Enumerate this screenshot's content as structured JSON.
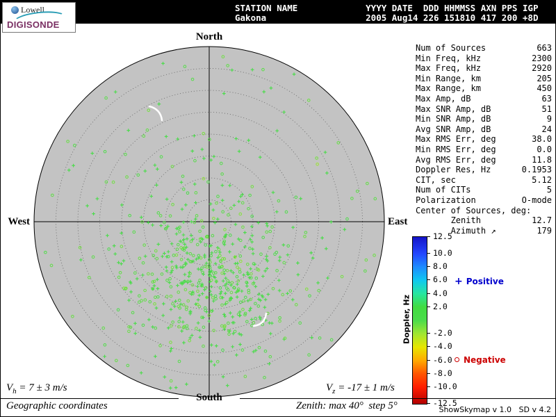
{
  "logo": {
    "line1": "Lowell",
    "line2": "DIGISONDE"
  },
  "header": {
    "line1": "STATION NAME             YYYY DATE  DDD HHMMSS AXN PPS IGP",
    "line2": "Gakona                   2005 Aug14 226 151810 417 200 +8D"
  },
  "compass": {
    "north": "North",
    "south": "South",
    "west": "West",
    "east": "East"
  },
  "stats": {
    "rows": [
      {
        "label": "Num of Sources",
        "value": "663"
      },
      {
        "label": "Min Freq, kHz",
        "value": "2300"
      },
      {
        "label": "Max Freq, kHz",
        "value": "2920"
      },
      {
        "label": "Min Range, km",
        "value": "205"
      },
      {
        "label": "Max Range, km",
        "value": "450"
      },
      {
        "label": "Max Amp, dB",
        "value": "63"
      },
      {
        "label": "Max SNR Amp, dB",
        "value": "51"
      },
      {
        "label": "Min SNR Amp, dB",
        "value": "9"
      },
      {
        "label": "Avg SNR Amp, dB",
        "value": "24"
      },
      {
        "label": "Max RMS Err, deg",
        "value": "38.0"
      },
      {
        "label": "Min RMS Err, deg",
        "value": "0.0"
      },
      {
        "label": "Avg RMS Err, deg",
        "value": "11.8"
      },
      {
        "label": "Doppler Res, Hz",
        "value": "0.1953"
      },
      {
        "label": "CIT, sec",
        "value": "5.12"
      },
      {
        "label": "Num of CITs",
        "value": "5"
      },
      {
        "label": "Polarization",
        "value": "O-mode"
      },
      {
        "label": "Center of Sources, deg:",
        "value": ""
      },
      {
        "label": "       Zenith",
        "value": "12.7"
      },
      {
        "label": "       Azimuth ↗",
        "value": "179"
      }
    ]
  },
  "colorbar": {
    "title": "Doppler, Hz",
    "range": [
      -12.5,
      12.5
    ],
    "ticks": [
      "12.5",
      "10.0",
      "8.0",
      "6.0",
      "4.0",
      "2.0",
      "-2.0",
      "-4.0",
      "-6.0",
      "-8.0",
      "-10.0",
      "-12.5"
    ],
    "stops": [
      [
        12.5,
        "#1414c8"
      ],
      [
        10,
        "#2346ff"
      ],
      [
        8,
        "#1e8cff"
      ],
      [
        6,
        "#0fc8f0"
      ],
      [
        4,
        "#28e6a0"
      ],
      [
        2,
        "#41dc41"
      ],
      [
        0,
        "#4bdc4b"
      ],
      [
        -2,
        "#a0e632"
      ],
      [
        -4,
        "#e6e600"
      ],
      [
        -6,
        "#ffaa00"
      ],
      [
        -8,
        "#ff5500"
      ],
      [
        -10,
        "#ff1e00"
      ],
      [
        -12.5,
        "#b40000"
      ]
    ]
  },
  "legend": {
    "positive": {
      "marker": "+",
      "label": "Positive",
      "color": "#0000cd"
    },
    "negative": {
      "marker": "o",
      "label": "Negative",
      "color": "#cc0000"
    }
  },
  "footer": {
    "vh": {
      "symbol": "V",
      "sub": "h",
      "rest": " = 7 ± 3 m/s"
    },
    "vz": {
      "symbol": "V",
      "sub": "z",
      "rest": " = -17 ± 1 m/s"
    },
    "coordinates": "Geographic coordinates",
    "zenith_note": "Zenith: max 40°  step 5°",
    "version": "ShowSkymap v 1.0   SD v 4.2"
  },
  "chart_data": {
    "type": "scatter",
    "title": "Digisonde skymap of reflection sources, Gakona, 2005 Aug14 226 151810",
    "coordinate_system": "polar skymap: zenith angle (radius) vs geographic azimuth, North up",
    "zenith_max_deg": 40,
    "zenith_step_deg": 5,
    "num_points": 663,
    "center_of_sources": {
      "zenith_deg": 12.7,
      "azimuth_deg": 179
    },
    "doppler_axis": {
      "label": "Doppler, Hz",
      "min": -12.5,
      "max": 12.5,
      "resolution_hz": 0.1953
    },
    "marker_rule": {
      "positive_doppler": "+",
      "negative_doppler": "o"
    },
    "plot_bg": "#c3c3c3",
    "ring_color": "#606060",
    "point_color_near_zero": "#55e05a",
    "distribution": {
      "seed": 11,
      "cluster_fraction": 0.76,
      "cluster_sigma_deg": 9,
      "doppler_sigma_hz": 0.6
    },
    "artifacts": [
      "M170 90 Q186 94 188 110",
      "M338 388 Q336 404 320 406"
    ],
    "summary": {
      "num_sources": 663,
      "min_freq_khz": 2300,
      "max_freq_khz": 2920,
      "min_range_km": 205,
      "max_range_km": 450,
      "max_amp_db": 63,
      "max_snr_db": 51,
      "min_snr_db": 9,
      "avg_snr_db": 24,
      "max_rms_err_deg": 38.0,
      "min_rms_err_deg": 0.0,
      "avg_rms_err_deg": 11.8,
      "cit_sec": 5.12,
      "num_cits": 5,
      "polarization": "O-mode",
      "vh_ms": "7 ± 3",
      "vz_ms": "-17 ± 1"
    }
  }
}
